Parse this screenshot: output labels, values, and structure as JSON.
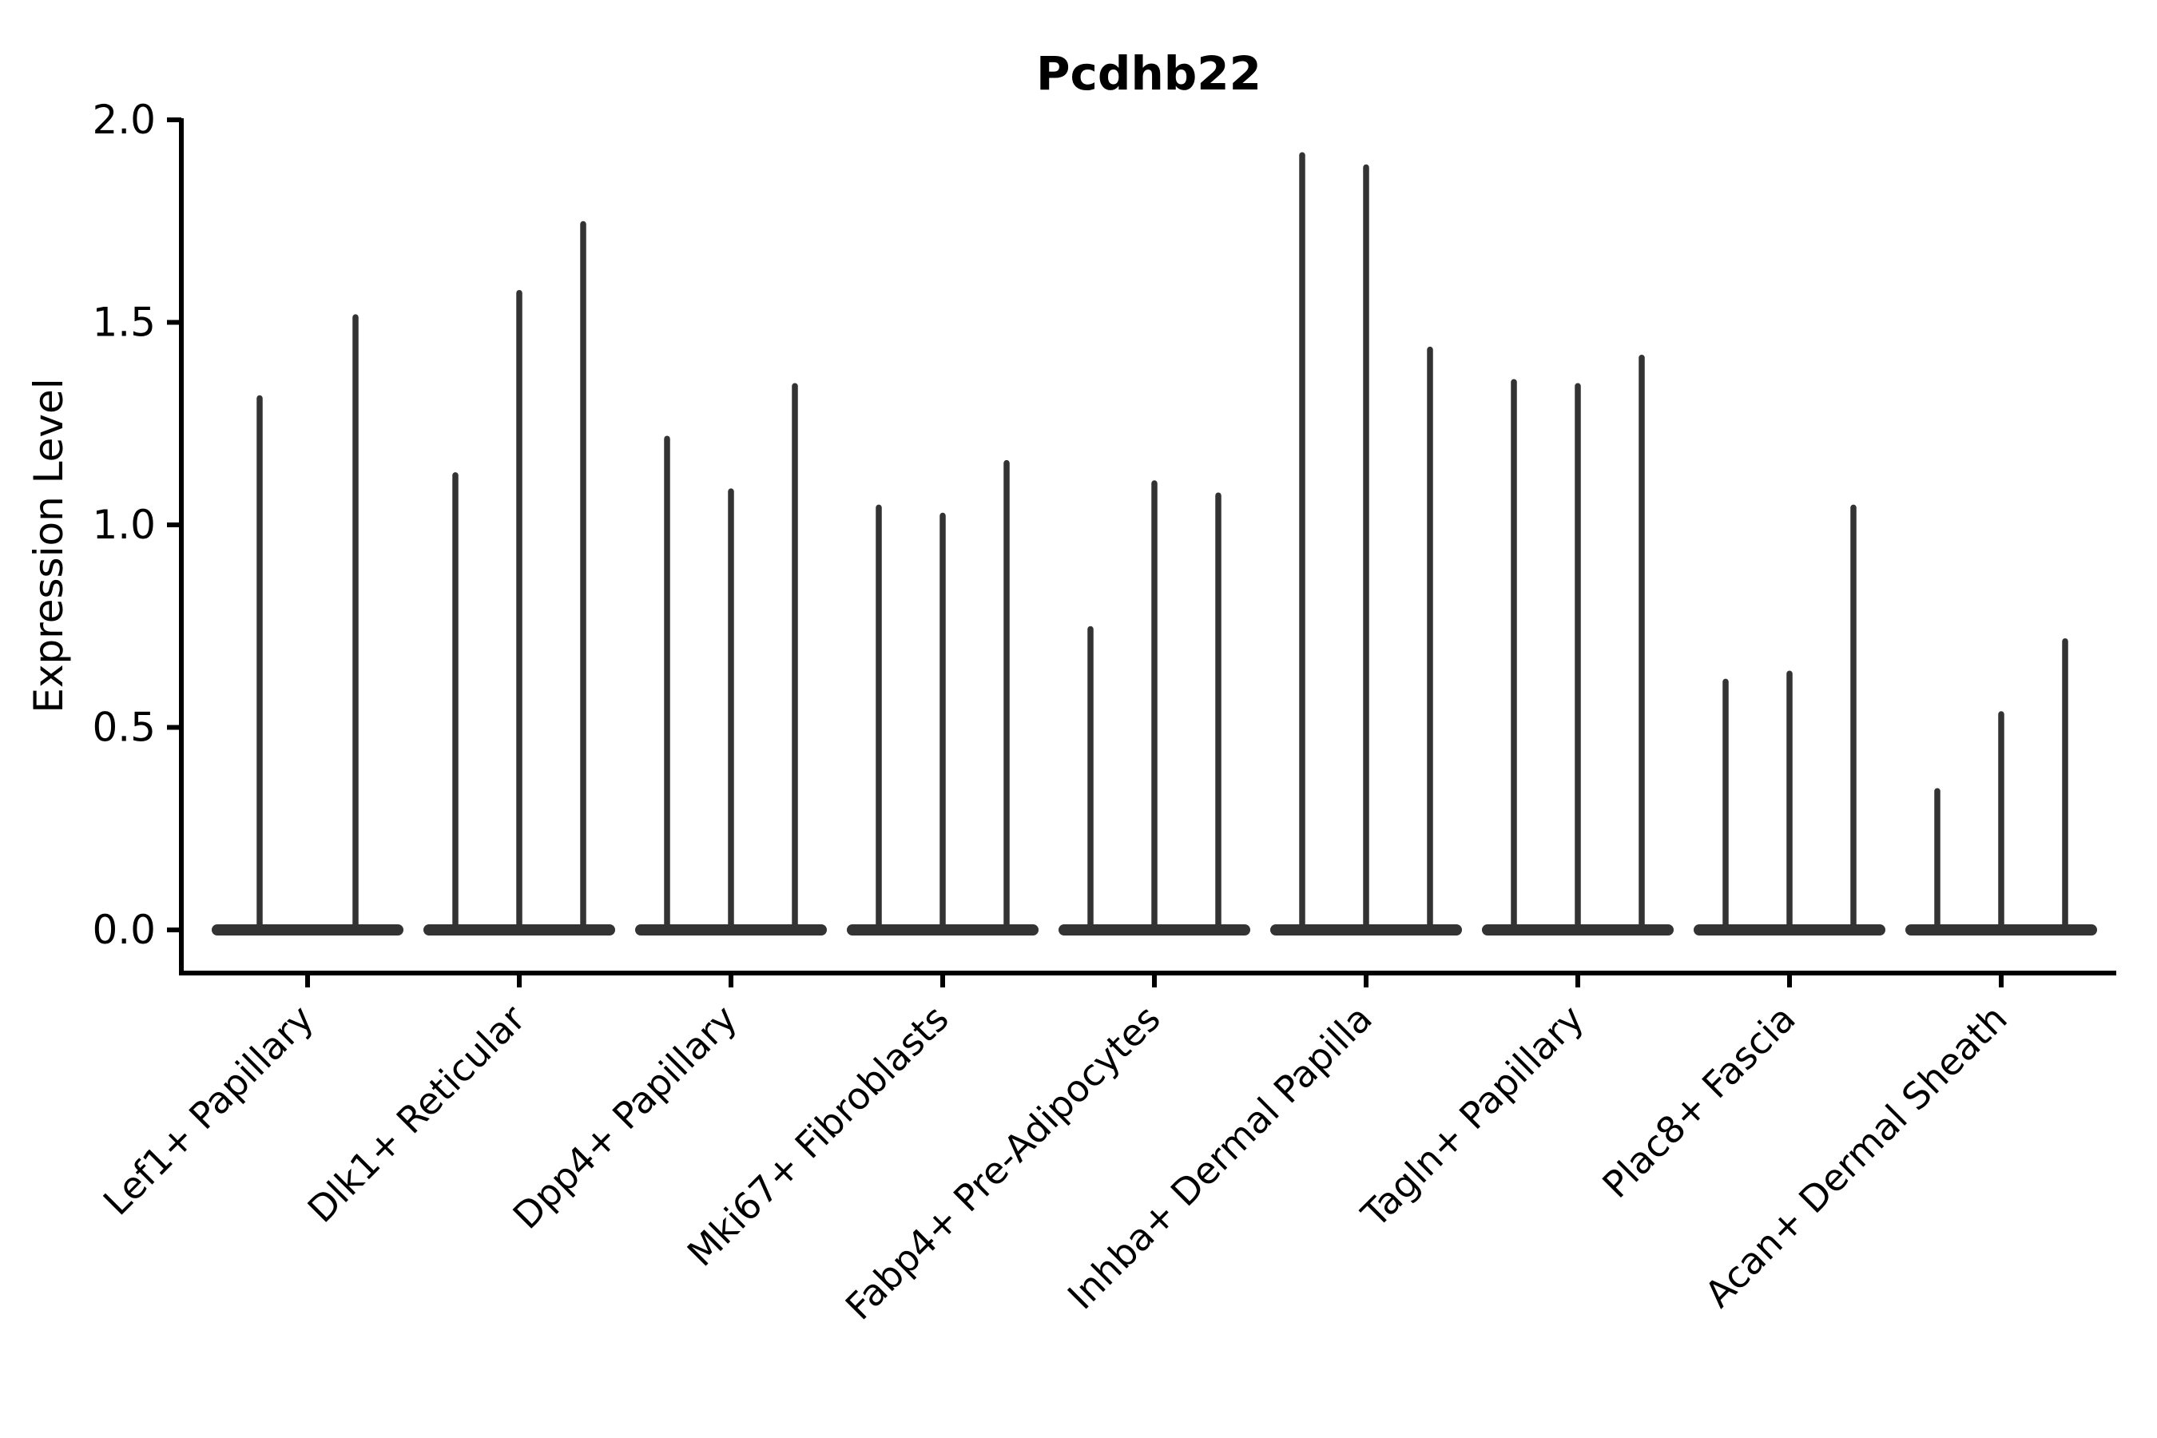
{
  "figure": {
    "background_color": "#ffffff",
    "text_color": "#000000",
    "violin_color": "#333333",
    "axis_color": "#000000"
  },
  "chart_data": {
    "type": "violin",
    "title": "Pcdhb22",
    "xlabel": "",
    "ylabel": "Expression Level",
    "ylim": [
      -0.11,
      2.05
    ],
    "yticks": [
      0.0,
      0.5,
      1.0,
      1.5,
      2.0
    ],
    "ytick_labels": [
      "0.0",
      "0.5",
      "1.0",
      "1.5",
      "2.0"
    ],
    "grid": false,
    "legend_position": "none",
    "xtick_rotation_deg": 45,
    "description": "Violin plot of single-cell expression; each category shows 2-3 extremely thin violins flattened at 0 with narrow spikes reaching the max expression value.",
    "categories": [
      "Lef1+ Papillary",
      "Dlk1+ Reticular",
      "Dpp4+ Papillary",
      "Mki67+ Fibroblasts",
      "Fabp4+ Pre-Adipocytes",
      "Inhba+ Dermal Papilla",
      "Tagln+ Papillary",
      "Plac8+ Fascia",
      "Acan+ Dermal Sheath"
    ],
    "series": [
      {
        "category": "Lef1+ Papillary",
        "spike_max_values": [
          1.32,
          1.52
        ]
      },
      {
        "category": "Dlk1+ Reticular",
        "spike_max_values": [
          1.13,
          1.58,
          1.75
        ]
      },
      {
        "category": "Dpp4+ Papillary",
        "spike_max_values": [
          1.22,
          1.09,
          1.35
        ]
      },
      {
        "category": "Mki67+ Fibroblasts",
        "spike_max_values": [
          1.05,
          1.03,
          1.16
        ]
      },
      {
        "category": "Fabp4+ Pre-Adipocytes",
        "spike_max_values": [
          0.75,
          1.11,
          1.08
        ]
      },
      {
        "category": "Inhba+ Dermal Papilla",
        "spike_max_values": [
          1.92,
          1.89,
          1.44
        ]
      },
      {
        "category": "Tagln+ Papillary",
        "spike_max_values": [
          1.36,
          1.35,
          1.42
        ]
      },
      {
        "category": "Plac8+ Fascia",
        "spike_max_values": [
          0.62,
          0.64,
          1.05
        ]
      },
      {
        "category": "Acan+ Dermal Sheath",
        "spike_max_values": [
          0.35,
          0.54,
          0.72
        ]
      }
    ]
  }
}
